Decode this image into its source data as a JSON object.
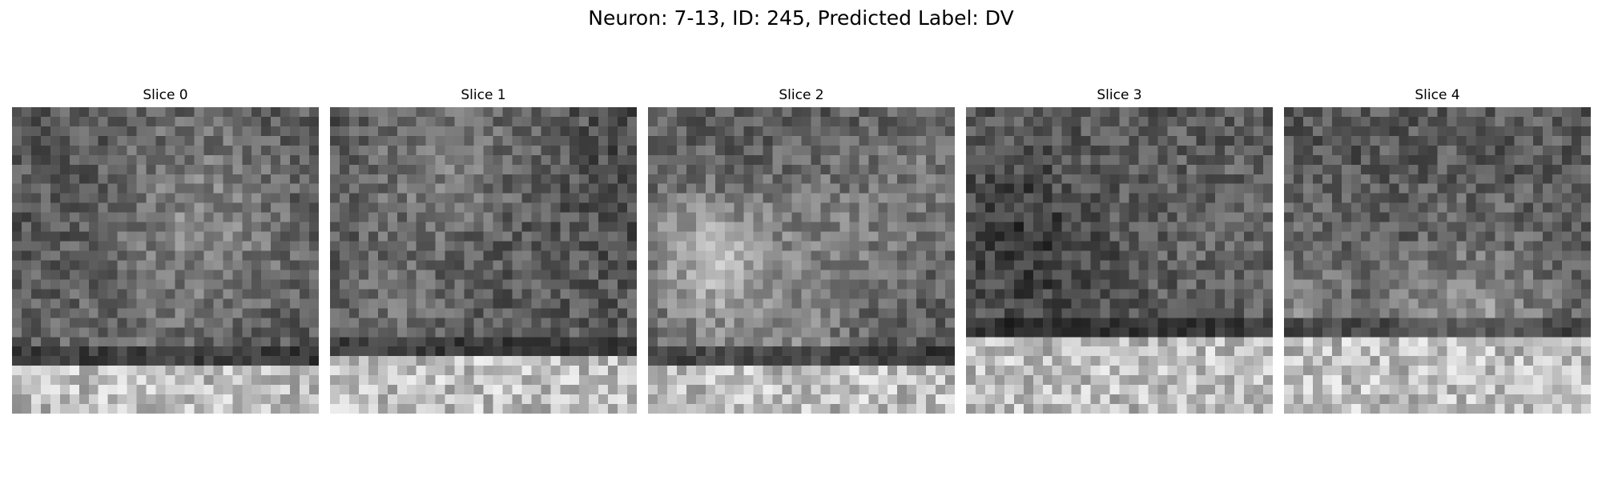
{
  "figure": {
    "title": "Neuron: 7-13, ID: 245, Predicted Label: DV"
  },
  "colormap": "gray",
  "slices": [
    {
      "label": "Slice 0",
      "seed": 11,
      "bright_rows_from": 0.86
    },
    {
      "label": "Slice 1",
      "seed": 23,
      "bright_rows_from": 0.82
    },
    {
      "label": "Slice 2",
      "seed": 37,
      "bright_rows_from": 0.87
    },
    {
      "label": "Slice 3",
      "seed": 41,
      "bright_rows_from": 0.76
    },
    {
      "label": "Slice 4",
      "seed": 53,
      "bright_rows_from": 0.78
    }
  ]
}
